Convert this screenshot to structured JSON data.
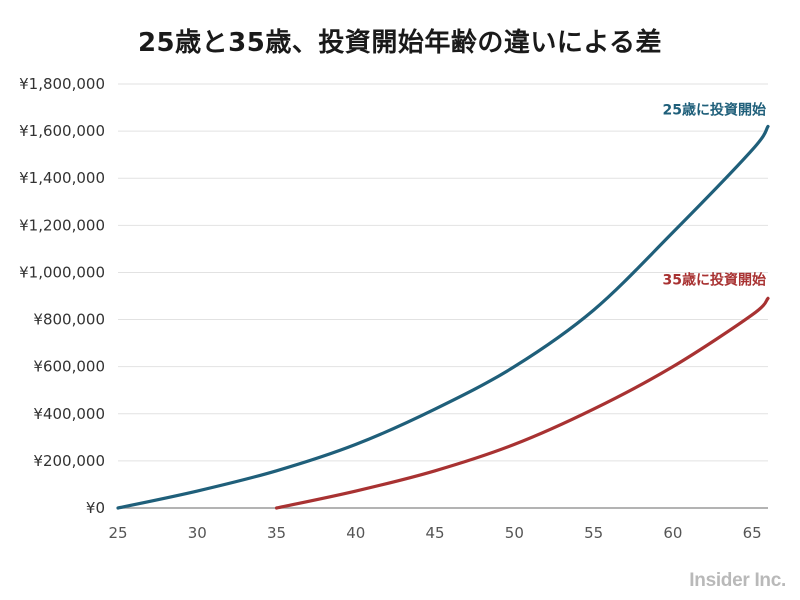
{
  "chart_data": {
    "type": "line",
    "title": "25歳と35歳、投資開始年齢の違いによる差",
    "xlabel": "",
    "ylabel": "",
    "xlim": [
      25,
      66
    ],
    "ylim": [
      0,
      1800000
    ],
    "x_ticks": [
      "25",
      "30",
      "35",
      "40",
      "45",
      "50",
      "55",
      "60",
      "65"
    ],
    "y_ticks": [
      "¥0",
      "¥200,000",
      "¥400,000",
      "¥600,000",
      "¥800,000",
      "¥1,000,000",
      "¥1,200,000",
      "¥1,400,000",
      "¥1,600,000",
      "¥1,800,000"
    ],
    "grid": true,
    "series": [
      {
        "name": "25歳に投資開始",
        "color": "#1f5f7a",
        "x": [
          25,
          30,
          35,
          40,
          45,
          50,
          55,
          60,
          65,
          66
        ],
        "y": [
          0,
          72000,
          158000,
          270000,
          420000,
          600000,
          840000,
          1170000,
          1520000,
          1620000
        ]
      },
      {
        "name": "35歳に投資開始",
        "color": "#a83232",
        "x": [
          35,
          40,
          45,
          50,
          55,
          60,
          65,
          66
        ],
        "y": [
          0,
          72000,
          158000,
          270000,
          420000,
          600000,
          820000,
          890000
        ]
      }
    ]
  },
  "watermark": "Insider Inc."
}
